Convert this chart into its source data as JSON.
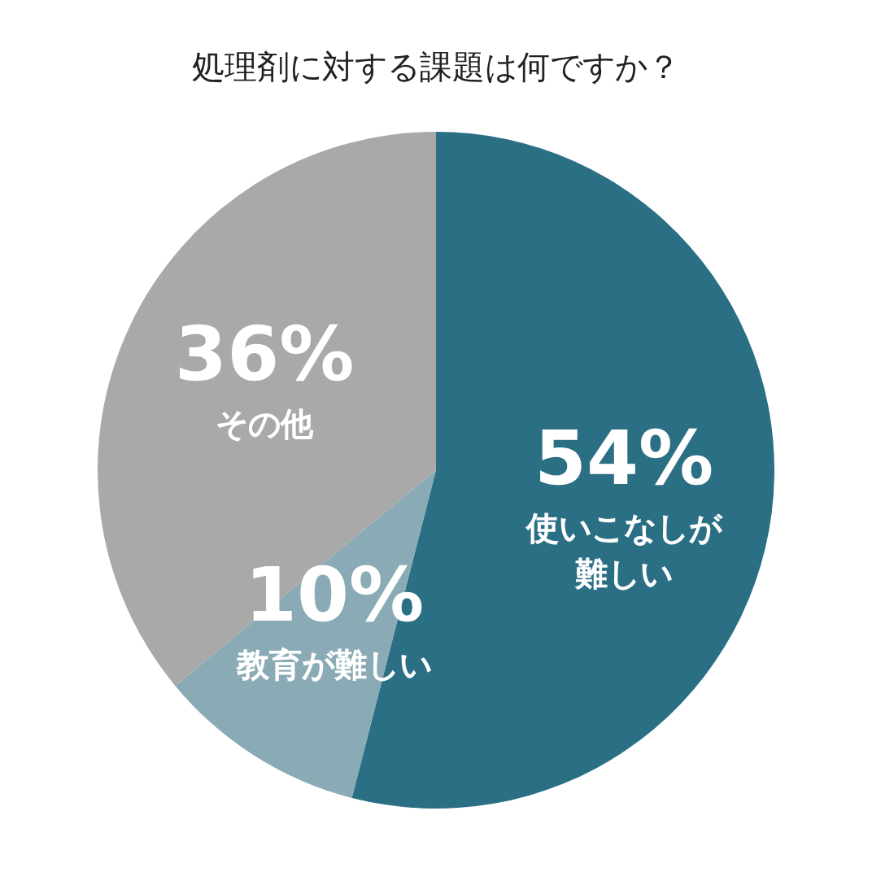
{
  "chart_data": {
    "type": "pie",
    "title": "処理剤に対する課題は何ですか？",
    "categories": [
      "使いこなしが難しい",
      "教育が難しい",
      "その他"
    ],
    "values": [
      54,
      10,
      36
    ],
    "colors": [
      "#2a6f84",
      "#8aaab5",
      "#a9a9a9"
    ],
    "value_labels": [
      "54%",
      "10%",
      "36%"
    ],
    "legend": false
  }
}
